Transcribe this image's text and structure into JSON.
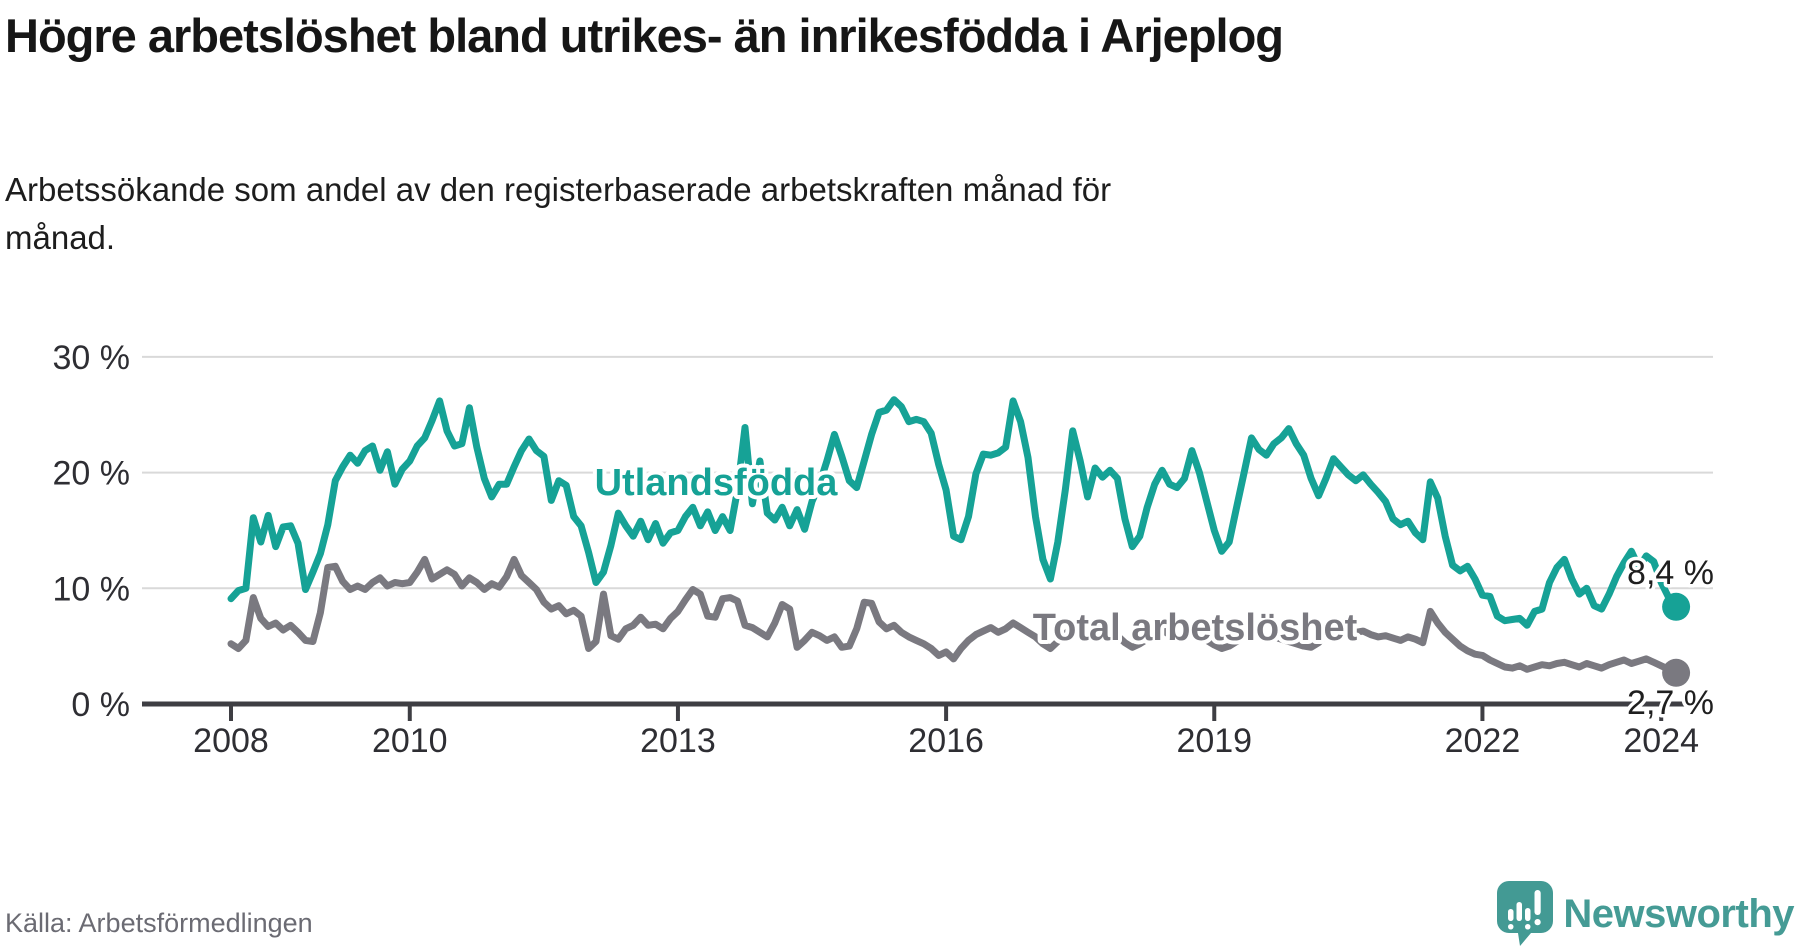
{
  "header": {
    "title": "Högre arbetslöshet bland utrikes- än inrikesfödda i Arjeplog",
    "subtitle_line1": "Arbetssökande som andel av den registerbaserade arbetskraften månad för",
    "subtitle_line2": "månad."
  },
  "footer": {
    "source": "Källa: Arbetsförmedlingen",
    "brand": "Newsworthy"
  },
  "colors": {
    "accent_teal": "#16A296",
    "secondary_gray": "#7A7980",
    "axis": "#3E3E43",
    "grid": "#D9D9D9",
    "tick_text": "#2E2E33",
    "title_text": "#161616",
    "muted_text": "#6B6B73",
    "logo_teal": "#439A94"
  },
  "chart_data": {
    "type": "line",
    "title": "Högre arbetslöshet bland utrikes- än inrikesfödda i Arjeplog",
    "subtitle": "Arbetssökande som andel av den registerbaserade arbetskraften månad för månad.",
    "x_unit": "month",
    "x_start": "2008-01",
    "x_end": "2024-03",
    "ylim": [
      0,
      30
    ],
    "grid": true,
    "legend_position": "inline",
    "y_ticks": [
      {
        "value": 0,
        "label": "0 %"
      },
      {
        "value": 10,
        "label": "10 %"
      },
      {
        "value": 20,
        "label": "20 %"
      },
      {
        "value": 30,
        "label": "30 %"
      }
    ],
    "x_ticks": [
      {
        "year": 2008,
        "label": "2008"
      },
      {
        "year": 2010,
        "label": "2010"
      },
      {
        "year": 2013,
        "label": "2013"
      },
      {
        "year": 2016,
        "label": "2016"
      },
      {
        "year": 2019,
        "label": "2019"
      },
      {
        "year": 2022,
        "label": "2022"
      },
      {
        "year": 2024,
        "label": "2024"
      }
    ],
    "series": [
      {
        "name": "Utlandsfödda",
        "color": "#16A296",
        "end_label": "8,4 %",
        "end_value": 8.4,
        "values": [
          9.1,
          9.8,
          10.0,
          16.1,
          14.0,
          16.3,
          13.6,
          15.3,
          15.4,
          13.9,
          9.9,
          11.4,
          13.0,
          15.5,
          19.3,
          20.5,
          21.5,
          20.8,
          21.9,
          22.3,
          20.2,
          21.8,
          19.0,
          20.3,
          21.0,
          22.3,
          23.0,
          24.5,
          26.2,
          23.6,
          22.3,
          22.5,
          25.6,
          22.2,
          19.5,
          17.9,
          19.0,
          19.0,
          20.5,
          21.9,
          22.9,
          21.9,
          21.4,
          17.6,
          19.3,
          18.9,
          16.2,
          15.4,
          13.1,
          10.5,
          11.4,
          13.7,
          16.5,
          15.4,
          14.5,
          15.8,
          14.2,
          15.6,
          13.9,
          14.8,
          15.0,
          16.2,
          17.0,
          15.4,
          16.6,
          15.0,
          16.2,
          15.0,
          18.5,
          23.9,
          17.3,
          21.0,
          16.5,
          15.9,
          17.0,
          15.4,
          16.8,
          15.1,
          17.5,
          19.0,
          21.0,
          23.3,
          21.4,
          19.3,
          18.7,
          21.0,
          23.3,
          25.2,
          25.4,
          26.3,
          25.7,
          24.4,
          24.6,
          24.4,
          23.4,
          20.7,
          18.5,
          14.5,
          14.2,
          16.2,
          19.9,
          21.6,
          21.5,
          21.7,
          22.2,
          26.2,
          24.4,
          21.3,
          16.2,
          12.5,
          10.8,
          14.0,
          18.5,
          23.6,
          21.0,
          17.9,
          20.4,
          19.6,
          20.2,
          19.5,
          16.0,
          13.6,
          14.5,
          17.0,
          19.0,
          20.2,
          19.0,
          18.7,
          19.5,
          21.9,
          20.0,
          17.5,
          15.0,
          13.2,
          14.0,
          17.0,
          20.0,
          23.0,
          22.0,
          21.5,
          22.5,
          23.0,
          23.8,
          22.5,
          21.5,
          19.5,
          18.0,
          19.5,
          21.2,
          20.5,
          19.8,
          19.3,
          19.8,
          19.0,
          18.3,
          17.5,
          16.0,
          15.5,
          15.8,
          14.8,
          14.2,
          19.2,
          17.8,
          14.5,
          12.0,
          11.5,
          11.9,
          10.8,
          9.4,
          9.3,
          7.6,
          7.2,
          7.3,
          7.4,
          6.8,
          8.0,
          8.2,
          10.5,
          11.8,
          12.5,
          10.8,
          9.5,
          10.0,
          8.5,
          8.2,
          9.5,
          11.0,
          12.2,
          13.2,
          11.8,
          12.8,
          12.3,
          10.5,
          9.2,
          8.4
        ]
      },
      {
        "name": "Total arbetslöshet",
        "color": "#7A7980",
        "end_label": "2,7 %",
        "end_value": 2.7,
        "values": [
          5.2,
          4.8,
          5.5,
          9.2,
          7.4,
          6.7,
          7.0,
          6.4,
          6.8,
          6.2,
          5.5,
          5.4,
          7.9,
          11.8,
          11.9,
          10.6,
          9.9,
          10.2,
          9.9,
          10.5,
          10.9,
          10.2,
          10.5,
          10.4,
          10.5,
          11.4,
          12.5,
          10.8,
          11.2,
          11.6,
          11.2,
          10.2,
          10.9,
          10.5,
          9.9,
          10.4,
          10.1,
          11.0,
          12.5,
          11.1,
          10.5,
          9.9,
          8.8,
          8.2,
          8.5,
          7.8,
          8.1,
          7.6,
          4.8,
          5.4,
          9.5,
          5.9,
          5.6,
          6.5,
          6.8,
          7.5,
          6.8,
          6.9,
          6.5,
          7.4,
          8.0,
          9.0,
          9.9,
          9.5,
          7.6,
          7.5,
          9.1,
          9.2,
          8.9,
          6.8,
          6.6,
          6.2,
          5.8,
          7.0,
          8.6,
          8.2,
          4.9,
          5.5,
          6.2,
          5.9,
          5.5,
          5.8,
          4.9,
          5.0,
          6.5,
          8.8,
          8.7,
          7.1,
          6.5,
          6.8,
          6.2,
          5.8,
          5.5,
          5.2,
          4.8,
          4.2,
          4.5,
          3.9,
          4.8,
          5.5,
          6.0,
          6.3,
          6.6,
          6.2,
          6.5,
          7.0,
          6.6,
          6.2,
          5.8,
          5.2,
          4.8,
          5.4,
          6.0,
          6.8,
          6.2,
          5.7,
          6.0,
          5.8,
          6.1,
          5.9,
          5.3,
          4.9,
          5.2,
          5.6,
          6.0,
          6.4,
          6.0,
          5.7,
          5.9,
          6.2,
          5.9,
          5.5,
          5.1,
          4.8,
          5.0,
          5.4,
          5.8,
          6.1,
          5.9,
          5.6,
          5.8,
          5.6,
          5.4,
          5.2,
          5.0,
          4.9,
          5.3,
          6.0,
          6.4,
          6.6,
          6.4,
          6.2,
          6.3,
          6.0,
          5.8,
          5.9,
          5.7,
          5.5,
          5.8,
          5.6,
          5.3,
          8.0,
          7.0,
          6.2,
          5.6,
          5.0,
          4.6,
          4.3,
          4.2,
          3.8,
          3.5,
          3.2,
          3.1,
          3.3,
          3.0,
          3.2,
          3.4,
          3.3,
          3.5,
          3.6,
          3.4,
          3.2,
          3.5,
          3.3,
          3.1,
          3.4,
          3.6,
          3.8,
          3.5,
          3.7,
          3.9,
          3.6,
          3.3,
          3.0,
          2.7
        ]
      }
    ]
  }
}
